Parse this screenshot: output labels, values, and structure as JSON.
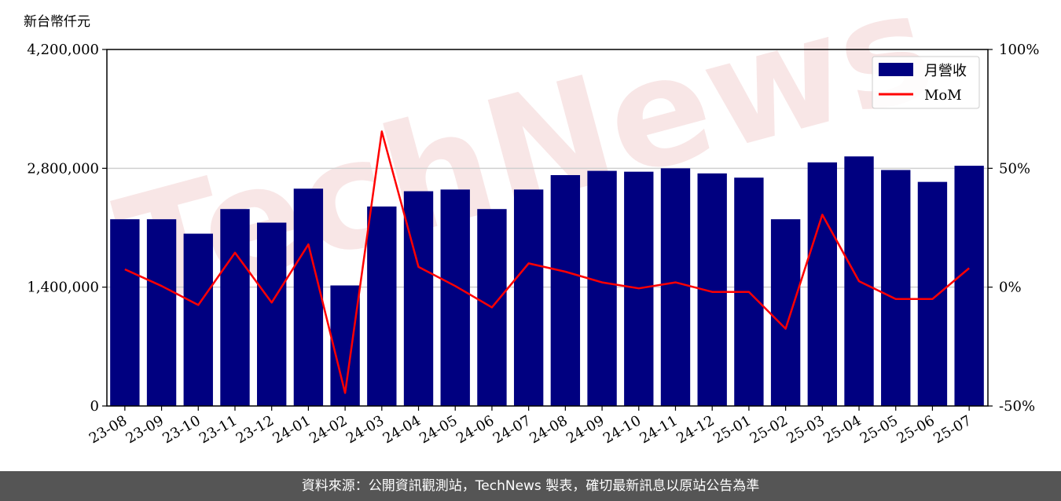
{
  "chart_data": {
    "type": "bar+line",
    "unit_label": "新台幣仟元",
    "categories": [
      "23-08",
      "23-09",
      "23-10",
      "23-11",
      "23-12",
      "24-01",
      "24-02",
      "24-03",
      "24-04",
      "24-05",
      "24-06",
      "24-07",
      "24-08",
      "24-09",
      "24-10",
      "24-11",
      "24-12",
      "25-01",
      "25-02",
      "25-03",
      "25-04",
      "25-05",
      "25-06",
      "25-07"
    ],
    "series": [
      {
        "name": "月營收",
        "axis": "left",
        "kind": "bar",
        "color": "#000080",
        "values": [
          2200000,
          2200000,
          2030000,
          2320000,
          2160000,
          2560000,
          1420000,
          2350000,
          2530000,
          2550000,
          2320000,
          2550000,
          2720000,
          2770000,
          2760000,
          2800000,
          2740000,
          2690000,
          2200000,
          2870000,
          2940000,
          2780000,
          2640000,
          2830000
        ]
      },
      {
        "name": "MoM",
        "axis": "right",
        "kind": "line",
        "color": "#ff0000",
        "values": [
          7.5,
          0.5,
          -7.5,
          14.5,
          -6.5,
          18.0,
          -44.5,
          65.5,
          8.5,
          0.5,
          -8.5,
          10.0,
          6.5,
          2.0,
          -0.5,
          2.0,
          -2.0,
          -2.0,
          -17.5,
          30.5,
          2.5,
          -5.0,
          -5.0,
          8.0
        ]
      }
    ],
    "y_left": {
      "lim": [
        0,
        4200000
      ],
      "ticks": [
        "0",
        "1,400,000",
        "2,800,000",
        "4,200,000"
      ],
      "tick_values": [
        0,
        1400000,
        2800000,
        4200000
      ]
    },
    "y_right": {
      "lim": [
        -50,
        100
      ],
      "ticks": [
        "-50%",
        "0%",
        "50%",
        "100%"
      ],
      "tick_values": [
        -50,
        0,
        50,
        100
      ]
    },
    "grid": "horizontal",
    "legend_position": "top-right"
  },
  "watermark": "TechNews",
  "footer": "資料來源：公開資訊觀測站，TechNews 製表，確切最新訊息以原站公告為準"
}
